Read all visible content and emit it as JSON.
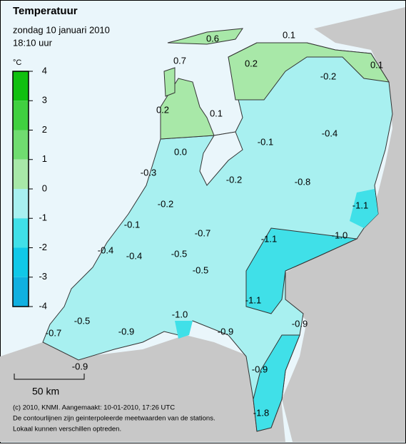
{
  "header": {
    "title": "Temperatuur",
    "date": "zondag 10 januari 2010",
    "time": "18:10 uur"
  },
  "legend": {
    "unit": "°C",
    "labels": [
      "4",
      "3",
      "2",
      "1",
      "0",
      "-1",
      "-2",
      "-3",
      "-4"
    ]
  },
  "stations": [
    "0.6",
    "0.1",
    "0.7",
    "0.2",
    "0.1",
    "-0.2",
    "0.2",
    "0.1",
    "-0.4",
    "-0.1",
    "0.0",
    "-0.3",
    "-0.2",
    "-0.8",
    "-1.1",
    "-0.2",
    "-0.1",
    "-0.7",
    "-1.0",
    "-1.1",
    "-0.4",
    "-0.4",
    "-0.5",
    "-0.5",
    "-1.1",
    "-1.0",
    "-0.5",
    "-0.9",
    "-0.7",
    "-0.9",
    "-0.9",
    "-0.9",
    "-0.9",
    "-1.8"
  ],
  "scale": "50 km",
  "footer": [
    "(c) 2010, KNMI. Aangemaakt: 10-01-2010, 17:26 UTC",
    "De contourlijnen zijn geinterpoleerde meetwaarden van de stations.",
    "Lokaal kunnen verschillen optreden."
  ]
}
